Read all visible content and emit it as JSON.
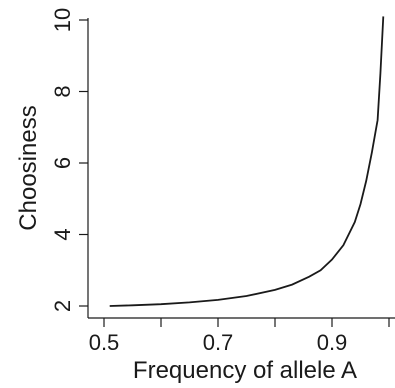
{
  "chart_data": {
    "type": "line",
    "title": "",
    "xlabel": "Frequency of allele A",
    "ylabel": "Choosiness",
    "xlim": [
      0.5,
      1.0
    ],
    "ylim": [
      2,
      10
    ],
    "x_ticks": [
      0.5,
      0.6,
      0.7,
      0.8,
      0.9,
      1.0
    ],
    "x_tick_labels": [
      "0.5",
      "",
      "0.7",
      "",
      "0.9",
      ""
    ],
    "y_ticks": [
      2,
      4,
      6,
      8,
      10
    ],
    "y_tick_labels": [
      "2",
      "4",
      "6",
      "8",
      "10"
    ],
    "grid": false,
    "legend": "none",
    "series": [
      {
        "x": [
          0.51,
          0.55,
          0.6,
          0.65,
          0.7,
          0.75,
          0.8,
          0.83,
          0.86,
          0.88,
          0.9,
          0.92,
          0.94,
          0.95,
          0.96,
          0.97,
          0.98,
          0.985,
          0.99
        ],
        "y": [
          2.0,
          2.02,
          2.05,
          2.1,
          2.17,
          2.28,
          2.45,
          2.6,
          2.82,
          3.0,
          3.3,
          3.7,
          4.35,
          4.85,
          5.5,
          6.3,
          7.2,
          8.5,
          10.1
        ]
      }
    ]
  }
}
